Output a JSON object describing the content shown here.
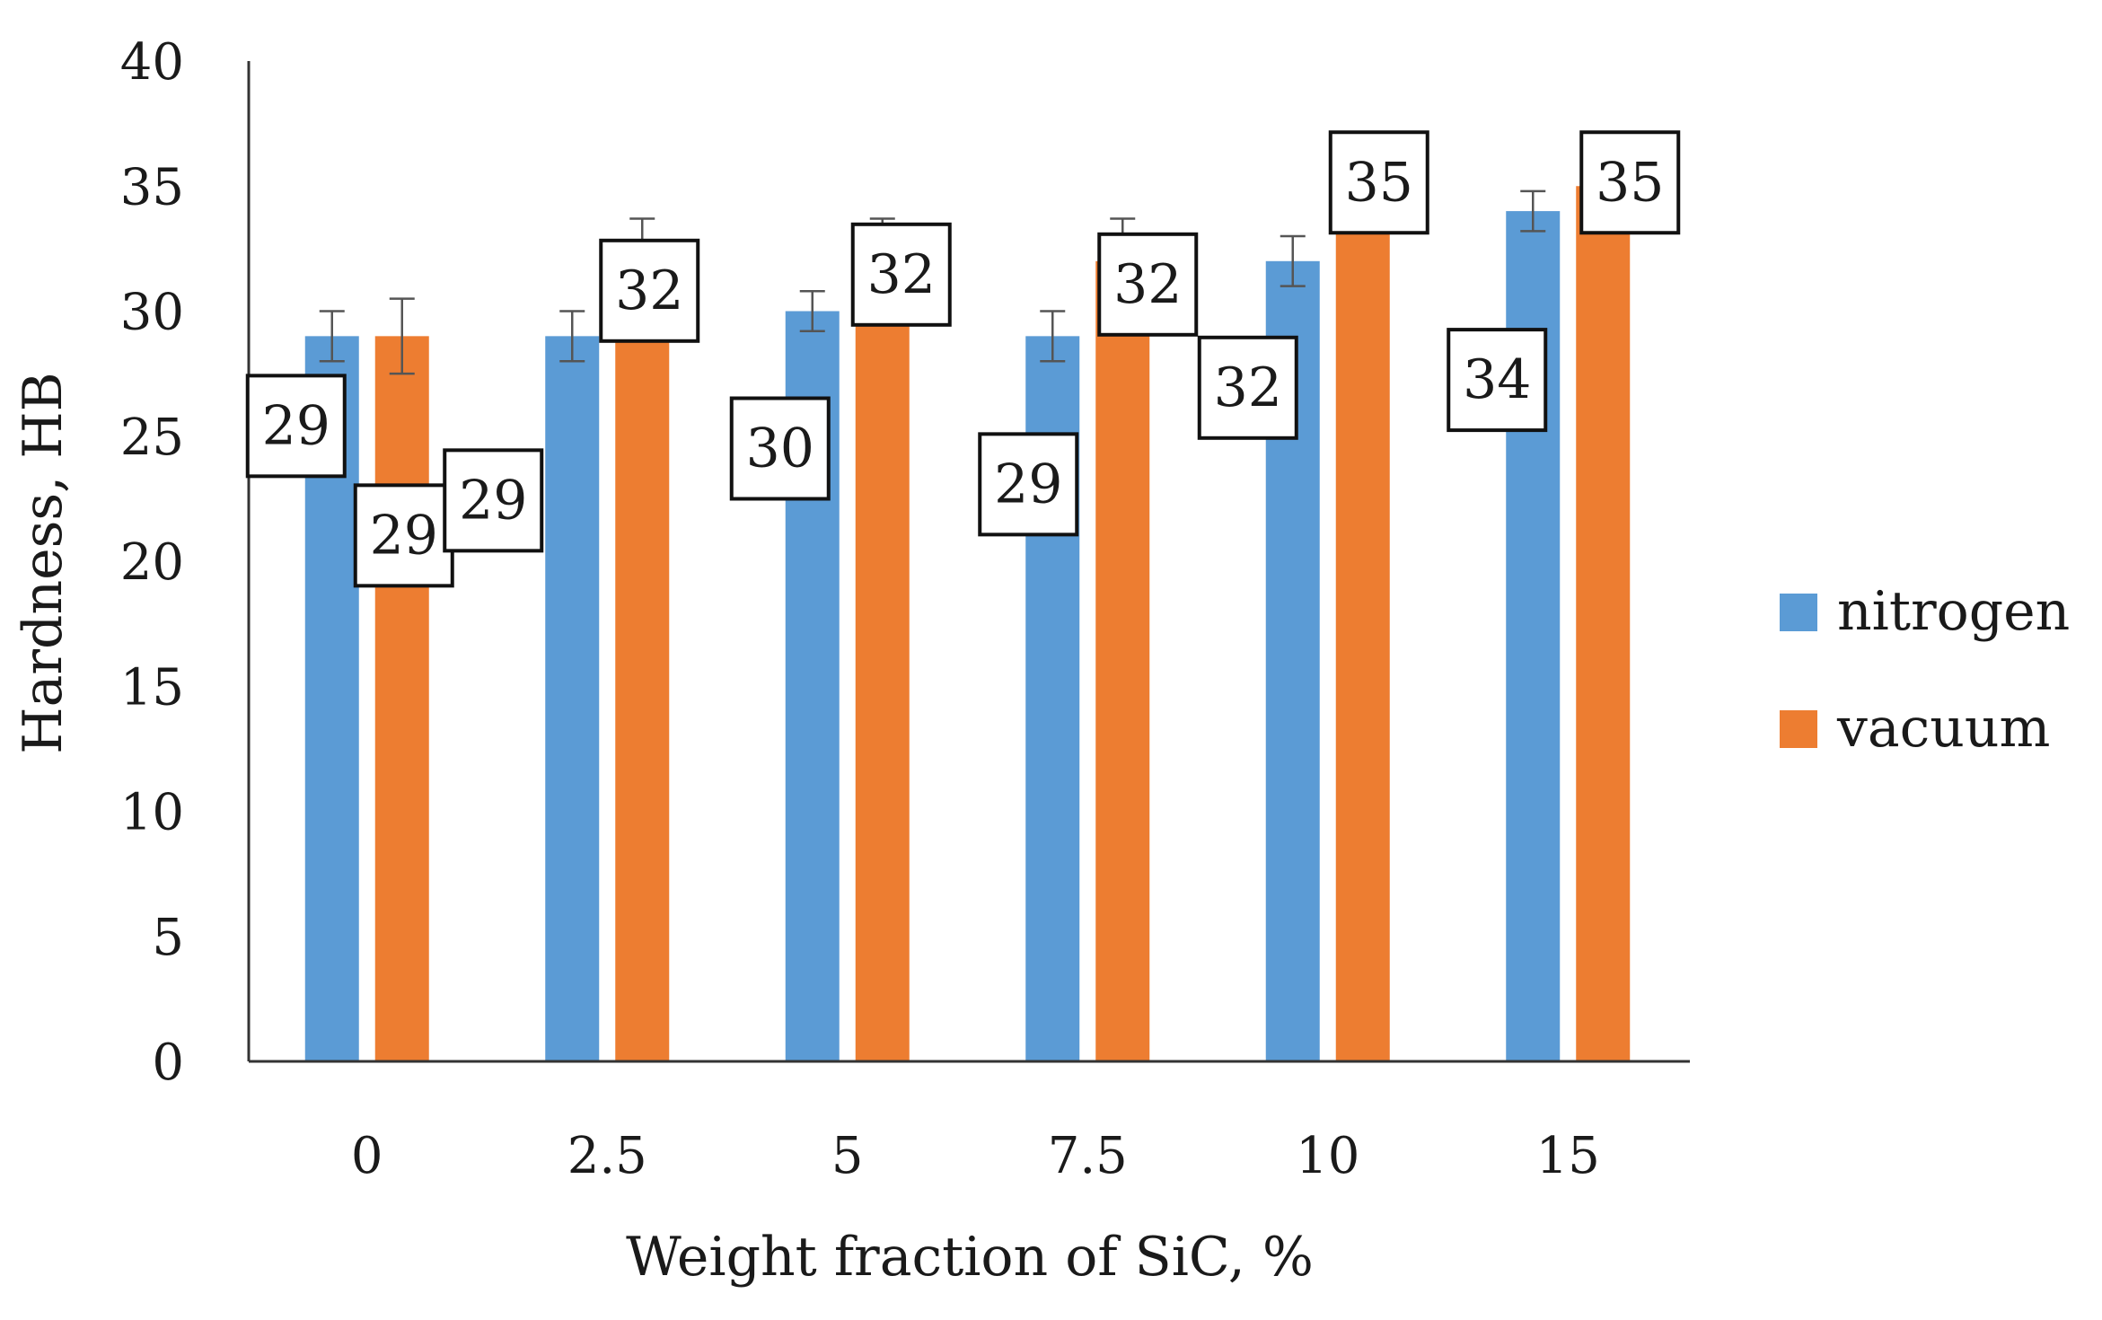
{
  "chart_data": {
    "type": "bar",
    "title": "",
    "xlabel": "Weight fraction of SiC, %",
    "ylabel": "Hardness, HB",
    "categories": [
      "0",
      "2.5",
      "5",
      "7.5",
      "10",
      "15"
    ],
    "ylim": [
      0,
      40
    ],
    "yticks": [
      "0",
      "5",
      "10",
      "15",
      "20",
      "25",
      "30",
      "35",
      "40"
    ],
    "grid": false,
    "legend_position": "right",
    "series": [
      {
        "name": "nitrogen",
        "color": "#5B9BD5",
        "values": [
          29,
          29,
          30,
          29,
          32,
          34
        ],
        "errors": [
          1,
          1,
          0.8,
          1,
          1,
          0.8
        ],
        "labels": [
          "29",
          "29",
          "30",
          "29",
          "32",
          "34"
        ]
      },
      {
        "name": "vacuum",
        "color": "#ED7D31",
        "values": [
          29,
          32,
          32,
          32,
          35,
          35
        ],
        "errors": [
          1.5,
          1.7,
          1.7,
          1.7,
          1.8,
          1.8
        ],
        "labels": [
          "29",
          "32",
          "32",
          "32",
          "35",
          "35"
        ]
      }
    ]
  }
}
